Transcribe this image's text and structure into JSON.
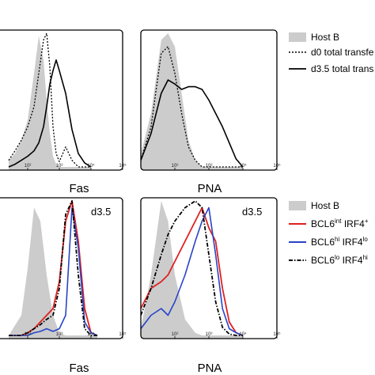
{
  "colors": {
    "host": "#cccccc",
    "black": "#000000",
    "red": "#e02020",
    "blue": "#2844c8"
  },
  "legend_top": [
    {
      "label": "Host B",
      "style": "filled-gray"
    },
    {
      "label": "d0 total transfe",
      "style": "dashed-black"
    },
    {
      "label": "d3.5 total trans",
      "style": "solid-black"
    }
  ],
  "legend_bottom": [
    {
      "label": "Host B",
      "style": "filled-gray"
    },
    {
      "base": "BCL6",
      "sup1": "int",
      "mid": " IRF4",
      "sup2": "+",
      "style": "solid-red"
    },
    {
      "base": "BCL6",
      "sup1": "hi",
      "mid": " IRF4",
      "sup2": "lo",
      "style": "solid-blue"
    },
    {
      "base": "BCL6",
      "sup1": "lo",
      "mid": " IRF4",
      "sup2": "hi",
      "style": "dashdot-black"
    }
  ],
  "chart_data": [
    {
      "type": "area",
      "xlabel": "Fas",
      "x_scale": "log",
      "xlim": [
        10,
        100000
      ],
      "x_ticks": [
        "10²",
        "10³",
        "10⁴",
        "10⁵"
      ],
      "x": [
        1.4,
        1.6,
        1.8,
        2.0,
        2.2,
        2.35,
        2.5,
        2.6,
        2.7,
        2.8,
        2.9,
        3.0,
        3.2,
        3.4,
        3.6,
        3.8,
        4.0
      ],
      "series": [
        {
          "name": "Host B",
          "style": "filled-gray",
          "values": [
            0.05,
            0.1,
            0.2,
            0.35,
            0.7,
            0.98,
            0.8,
            0.5,
            0.25,
            0.08,
            0.02,
            0,
            0,
            0,
            0,
            0,
            0
          ]
        },
        {
          "name": "d0 total transfe",
          "style": "dashed-black",
          "values": [
            0.05,
            0.12,
            0.2,
            0.3,
            0.45,
            0.7,
            0.95,
            1.0,
            0.75,
            0.3,
            0.1,
            0.04,
            0.15,
            0.05,
            0,
            0,
            0
          ]
        },
        {
          "name": "d3.5 total trans",
          "style": "solid-black",
          "values": [
            0,
            0.02,
            0.05,
            0.08,
            0.12,
            0.18,
            0.3,
            0.45,
            0.62,
            0.72,
            0.8,
            0.72,
            0.55,
            0.28,
            0.1,
            0.03,
            0
          ]
        }
      ]
    },
    {
      "type": "area",
      "xlabel": "PNA",
      "x_scale": "log",
      "xlim": [
        10,
        100000
      ],
      "x_ticks": [
        "10²",
        "10³",
        "10⁴",
        "10⁵"
      ],
      "x": [
        1.0,
        1.3,
        1.6,
        1.8,
        2.0,
        2.2,
        2.4,
        2.6,
        2.8,
        3.0,
        3.2,
        3.4,
        3.6,
        3.8,
        4.0
      ],
      "series": [
        {
          "name": "Host B",
          "style": "filled-gray",
          "values": [
            0.1,
            0.4,
            0.95,
            1.0,
            0.9,
            0.55,
            0.2,
            0.05,
            0,
            0,
            0,
            0,
            0,
            0,
            0
          ]
        },
        {
          "name": "d0 total transfe",
          "style": "dashed-black",
          "values": [
            0.05,
            0.3,
            0.85,
            0.9,
            0.7,
            0.4,
            0.15,
            0.05,
            0,
            0,
            0,
            0,
            0,
            0,
            0
          ]
        },
        {
          "name": "d3.5 total trans",
          "style": "solid-black",
          "values": [
            0.05,
            0.25,
            0.55,
            0.65,
            0.62,
            0.58,
            0.6,
            0.6,
            0.58,
            0.5,
            0.4,
            0.3,
            0.18,
            0.06,
            0
          ]
        }
      ]
    },
    {
      "type": "area",
      "xlabel": "Fas",
      "annotation": "d3.5",
      "x_scale": "log",
      "xlim": [
        10,
        100000
      ],
      "x_ticks": [
        "10²",
        "10³",
        "10⁴",
        "10⁵"
      ],
      "x": [
        1.4,
        1.8,
        2.0,
        2.2,
        2.4,
        2.6,
        2.8,
        3.0,
        3.2,
        3.4,
        3.6,
        3.8,
        4.0,
        4.2
      ],
      "series": [
        {
          "name": "Host B",
          "style": "filled-gray",
          "values": [
            0,
            0.15,
            0.5,
            0.95,
            0.85,
            0.45,
            0.15,
            0.02,
            0,
            0,
            0,
            0,
            0,
            0
          ]
        },
        {
          "name": "BCL6 int IRF4 +",
          "style": "solid-red",
          "values": [
            0,
            0,
            0.02,
            0.05,
            0.1,
            0.15,
            0.2,
            0.4,
            0.85,
            1.0,
            0.7,
            0.2,
            0.02,
            0
          ]
        },
        {
          "name": "BCL6 hi IRF4 lo",
          "style": "solid-blue",
          "values": [
            0,
            0,
            0,
            0.02,
            0.03,
            0.05,
            0.03,
            0.05,
            0.15,
            0.95,
            0.65,
            0.1,
            0.02,
            0
          ]
        },
        {
          "name": "BCL6 lo IRF4 hi",
          "style": "dashdot-black",
          "values": [
            0,
            0,
            0.02,
            0.05,
            0.08,
            0.12,
            0.15,
            0.35,
            0.9,
            1.0,
            0.45,
            0.05,
            0,
            0
          ]
        }
      ]
    },
    {
      "type": "area",
      "xlabel": "PNA",
      "annotation": "d3.5",
      "x_scale": "log",
      "xlim": [
        10,
        100000
      ],
      "x_ticks": [
        "10²",
        "10³",
        "10⁴",
        "10⁵"
      ],
      "x": [
        1.0,
        1.3,
        1.6,
        1.8,
        2.0,
        2.3,
        2.6,
        2.8,
        3.0,
        3.2,
        3.4,
        3.6,
        3.8,
        4.0
      ],
      "series": [
        {
          "name": "Host B",
          "style": "filled-gray",
          "values": [
            0.05,
            0.45,
            1.0,
            0.85,
            0.45,
            0.12,
            0.02,
            0,
            0,
            0,
            0,
            0,
            0,
            0
          ]
        },
        {
          "name": "BCL6 int IRF4 +",
          "style": "solid-red",
          "values": [
            0.2,
            0.35,
            0.4,
            0.45,
            0.55,
            0.7,
            0.85,
            0.95,
            0.8,
            0.7,
            0.35,
            0.1,
            0.02,
            0
          ]
        },
        {
          "name": "BCL6 hi IRF4 lo",
          "style": "solid-blue",
          "values": [
            0.05,
            0.15,
            0.2,
            0.15,
            0.25,
            0.45,
            0.7,
            0.85,
            0.95,
            0.6,
            0.2,
            0.05,
            0.02,
            0
          ]
        },
        {
          "name": "BCL6 lo IRF4 hi",
          "style": "dashdot-black",
          "values": [
            0.15,
            0.35,
            0.6,
            0.75,
            0.85,
            0.95,
            1.0,
            0.95,
            0.6,
            0.25,
            0.06,
            0.01,
            0,
            0
          ]
        }
      ]
    }
  ]
}
